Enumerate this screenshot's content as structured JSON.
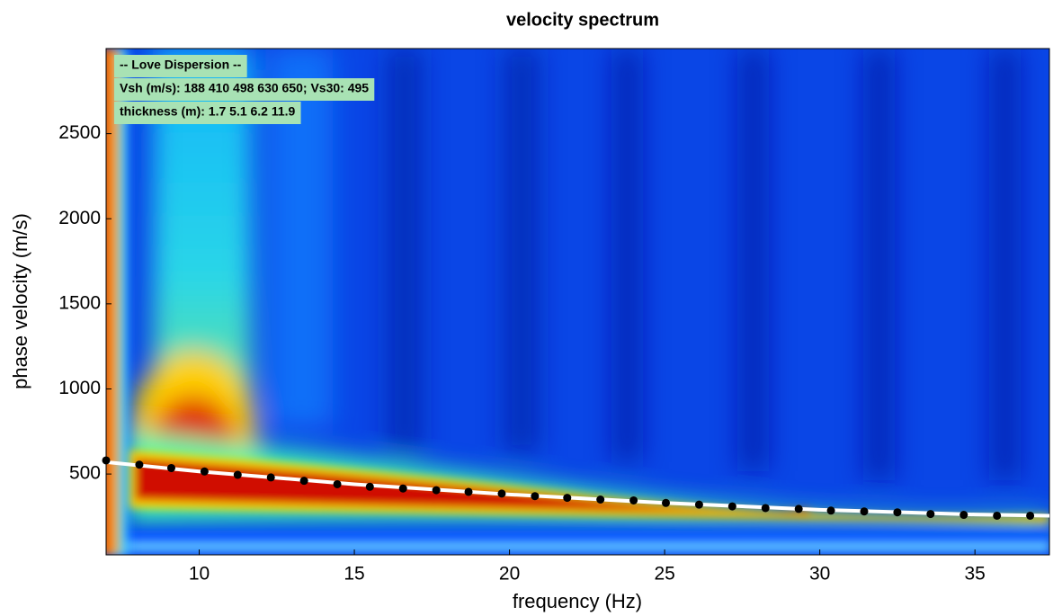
{
  "chart_data": {
    "type": "scatter",
    "title": "velocity spectrum",
    "xlabel": "frequency (Hz)",
    "ylabel": "phase velocity (m/s)",
    "xlim": [
      7,
      37.4
    ],
    "ylim": [
      25,
      3000
    ],
    "xticks": [
      10,
      15,
      20,
      25,
      30,
      35
    ],
    "yticks": [
      500,
      1000,
      1500,
      2000,
      2500
    ],
    "annotations": [
      "-- Love Dispersion --",
      "Vsh (m/s): 188  410  498  630  650; Vs30: 495",
      "thickness (m): 1.7    5.1    6.2   11.9"
    ],
    "annotation_color": "#a8e2b4",
    "series": [
      {
        "mode": "line",
        "color": "#ffffff",
        "x": [
          7,
          10,
          15,
          20,
          25,
          30,
          35,
          37.4
        ],
        "values": [
          570,
          515,
          440,
          380,
          330,
          290,
          262,
          255
        ]
      },
      {
        "mode": "markers",
        "color": "#000000",
        "x": [
          7.0,
          8.07,
          9.1,
          10.17,
          11.24,
          12.31,
          13.38,
          14.45,
          15.5,
          16.57,
          17.64,
          18.68,
          19.75,
          20.82,
          21.86,
          22.93,
          24.0,
          25.04,
          26.11,
          27.18,
          28.25,
          29.32,
          30.36,
          31.43,
          32.5,
          33.57,
          34.64,
          35.71,
          36.78
        ],
        "values": [
          580,
          555,
          535,
          515,
          495,
          480,
          460,
          440,
          425,
          415,
          405,
          395,
          385,
          370,
          360,
          350,
          345,
          330,
          320,
          310,
          300,
          295,
          285,
          280,
          275,
          265,
          260,
          255,
          255
        ]
      }
    ]
  }
}
